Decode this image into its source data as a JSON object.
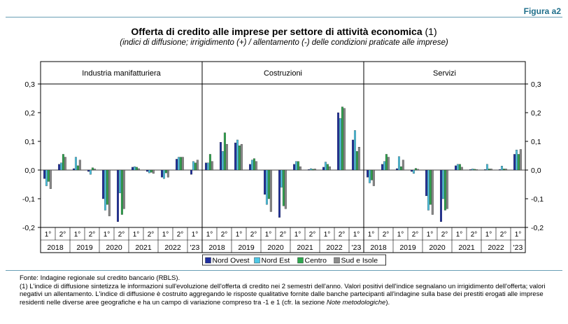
{
  "figure_label": "Figura a2",
  "title_main": "Offerta di credito alle imprese per settore di attività economica",
  "title_note": "(1)",
  "subtitle": "(indici di diffusione; irrigidimento (+) / allentamento (-) delle condizioni praticate alle imprese)",
  "chart_data": {
    "type": "bar",
    "panels": [
      "Industria manifatturiera",
      "Costruzioni",
      "Servizi"
    ],
    "ylim": [
      -0.2,
      0.3
    ],
    "yticks": [
      "0,3",
      "0,2",
      "0,1",
      "0,0",
      "-0,1",
      "-0,2"
    ],
    "ytick_values": [
      0.3,
      0.2,
      0.1,
      0.0,
      -0.1,
      -0.2
    ],
    "semesters": [
      "1°",
      "2°",
      "1°",
      "2°",
      "1°",
      "2°",
      "1°",
      "2°",
      "1°",
      "2°",
      "1°"
    ],
    "years": [
      "2018",
      "2019",
      "2020",
      "2021",
      "2022",
      "'23"
    ],
    "legend_position": "bottom",
    "series": [
      {
        "name": "Nord Ovest",
        "color": "#1f2fa0"
      },
      {
        "name": "Nord Est",
        "color": "#4fc8e6"
      },
      {
        "name": "Centro",
        "color": "#2fa84f"
      },
      {
        "name": "Sud e Isole",
        "color": "#8c8c8c"
      }
    ],
    "values": {
      "Industria manifatturiera": [
        [
          -0.03,
          -0.055,
          -0.04,
          -0.065
        ],
        [
          0.02,
          0.025,
          0.055,
          0.045
        ],
        [
          0.005,
          0.045,
          0.015,
          0.035
        ],
        [
          -0.005,
          -0.015,
          0.008,
          0.004
        ],
        [
          -0.1,
          -0.14,
          -0.12,
          -0.16
        ],
        [
          -0.18,
          -0.08,
          -0.155,
          -0.135
        ],
        [
          0.01,
          0.012,
          0.01,
          0.005
        ],
        [
          -0.005,
          -0.01,
          -0.008,
          -0.012
        ],
        [
          -0.025,
          -0.03,
          -0.01,
          -0.025
        ],
        [
          0.038,
          0.045,
          0.045,
          0.045
        ],
        [
          -0.015,
          0.03,
          0.025,
          0.035
        ]
      ],
      "Costruzioni": [
        [
          0.025,
          0.025,
          0.055,
          0.03
        ],
        [
          0.097,
          0.065,
          0.13,
          0.09
        ],
        [
          0.095,
          0.105,
          0.085,
          0.09
        ],
        [
          0.02,
          0.035,
          0.04,
          0.03
        ],
        [
          -0.085,
          -0.12,
          -0.1,
          -0.145
        ],
        [
          -0.165,
          -0.06,
          -0.125,
          -0.135
        ],
        [
          0.02,
          0.03,
          0.03,
          0.012
        ],
        [
          0.002,
          0.005,
          0.003,
          0.004
        ],
        [
          0.01,
          0.028,
          0.02,
          0.012
        ],
        [
          0.2,
          0.18,
          0.22,
          0.215
        ],
        [
          0.105,
          0.138,
          0.065,
          0.08
        ]
      ],
      "Servizi": [
        [
          -0.025,
          -0.045,
          -0.035,
          -0.055
        ],
        [
          0.02,
          0.03,
          0.055,
          0.045
        ],
        [
          0.005,
          0.047,
          0.012,
          0.035
        ],
        [
          -0.005,
          -0.012,
          0.006,
          0.003
        ],
        [
          -0.09,
          -0.14,
          -0.12,
          -0.155
        ],
        [
          -0.18,
          -0.1,
          -0.14,
          -0.135
        ],
        [
          0.015,
          0.02,
          0.02,
          0.01
        ],
        [
          0.002,
          0.004,
          0.003,
          0.002
        ],
        [
          0.002,
          0.02,
          0.004,
          0.004
        ],
        [
          0.002,
          0.014,
          0.004,
          0.004
        ],
        [
          0.055,
          0.07,
          0.055,
          0.072
        ]
      ]
    }
  },
  "footnotes": [
    "Fonte: Indagine regionale sul credito bancario (RBLS).",
    "(1) L'indice di diffusione sintetizza le informazioni sull'evoluzione dell'offerta di credito nei 2 semestri dell'anno. Valori positivi dell'indice segnalano un irrigidimento dell'offerta; valori negativi un allentamento. L'indice di diffusione è costruito aggregando le risposte qualitative fornite dalle banche partecipanti all'indagine sulla base dei prestiti erogati alle imprese residenti nelle diverse aree geografiche e ha un campo di variazione compreso tra -1 e 1 (cfr. la sezione "
  ],
  "footnote_italic": "Note metodologiche",
  "footnote_end": ")."
}
